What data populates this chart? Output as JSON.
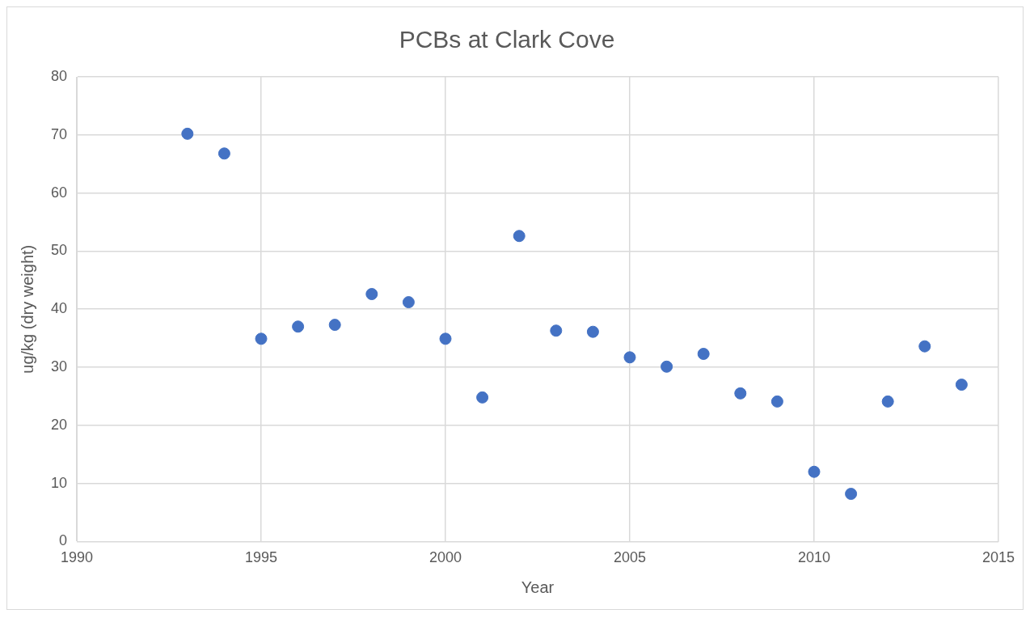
{
  "chart_data": {
    "type": "scatter",
    "title": "PCBs at Clark Cove",
    "xlabel": "Year",
    "ylabel": "ug/kg (dry weight)",
    "x": [
      1993,
      1994,
      1995,
      1996,
      1997,
      1998,
      1999,
      2000,
      2001,
      2002,
      2003,
      2004,
      2005,
      2006,
      2007,
      2008,
      2009,
      2010,
      2011,
      2012,
      2013,
      2014
    ],
    "series": [
      {
        "color": "#4472c4",
        "values": [
          70.2,
          66.8,
          34.9,
          37.0,
          37.3,
          42.6,
          41.2,
          34.9,
          24.8,
          52.6,
          36.3,
          36.1,
          31.7,
          30.1,
          32.3,
          25.5,
          24.1,
          12.0,
          8.2,
          24.1,
          33.6,
          27.0
        ]
      }
    ],
    "xlim": [
      1990,
      2015
    ],
    "xticks": [
      1990,
      1995,
      2000,
      2005,
      2010,
      2015
    ],
    "ylim": [
      0,
      80
    ],
    "yticks": [
      0,
      10,
      20,
      30,
      40,
      50,
      60,
      70,
      80
    ],
    "grid": true,
    "legend": false,
    "marker": "circle"
  }
}
